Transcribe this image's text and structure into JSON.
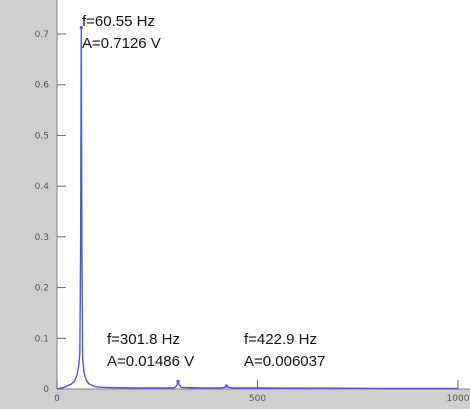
{
  "chart_data": {
    "type": "line",
    "title": "",
    "xlabel": "",
    "ylabel": "",
    "xlim": [
      0,
      1000
    ],
    "ylim": [
      0,
      0.73
    ],
    "x_ticks": [
      0,
      500,
      1000
    ],
    "x_tick_labels": [
      "0",
      "500",
      "1000"
    ],
    "y_ticks": [
      0,
      0.1,
      0.2,
      0.3,
      0.4,
      0.5,
      0.6,
      0.7
    ],
    "y_tick_labels": [
      "0",
      "0.1",
      "0.2",
      "0.3",
      "0.4",
      "0.5",
      "0.6",
      "0.7"
    ],
    "grid": false,
    "series": [
      {
        "color": "#4a57d8",
        "x": [
          0,
          12,
          20,
          28,
          36,
          44,
          50,
          54,
          57,
          59,
          60.55,
          62,
          64,
          67,
          70,
          74,
          80,
          90,
          100,
          120,
          150,
          200,
          250,
          290,
          296,
          300,
          301.8,
          304,
          310,
          360,
          410,
          418,
          422.9,
          428,
          440,
          500,
          600,
          700,
          800,
          900,
          1000
        ],
        "y": [
          0,
          0.002,
          0.004,
          0.007,
          0.01,
          0.016,
          0.028,
          0.045,
          0.07,
          0.3,
          0.7126,
          0.3,
          0.06,
          0.035,
          0.024,
          0.016,
          0.01,
          0.006,
          0.004,
          0.003,
          0.0025,
          0.002,
          0.002,
          0.002,
          0.004,
          0.009,
          0.01486,
          0.009,
          0.003,
          0.002,
          0.002,
          0.003,
          0.006037,
          0.003,
          0.002,
          0.002,
          0.0015,
          0.0015,
          0.001,
          0.001,
          0.001
        ]
      }
    ],
    "annotations": [
      {
        "lines": [
          "f=60.55 Hz",
          "A=0.7126 V"
        ],
        "x": 60.55,
        "y": 0.7126
      },
      {
        "lines": [
          "f=301.8 Hz",
          "A=0.01486 V"
        ],
        "x": 301.8,
        "y": 0.01486
      },
      {
        "lines": [
          "f=422.9 Hz",
          "A=0.006037"
        ],
        "x": 422.9,
        "y": 0.006037
      }
    ]
  }
}
